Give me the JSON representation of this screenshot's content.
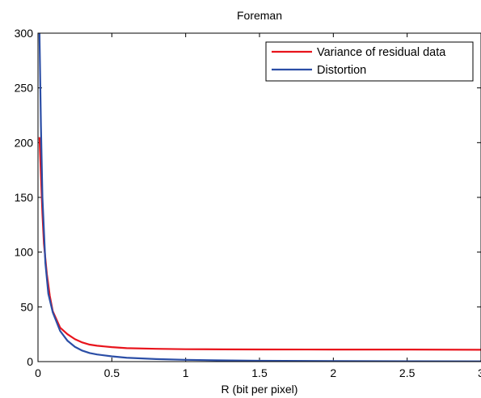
{
  "chart_data": {
    "type": "line",
    "title": "Foreman",
    "xlabel": "R (bit per pixel)",
    "ylabel": "",
    "xlim": [
      0,
      3
    ],
    "ylim": [
      0,
      300
    ],
    "xticks": [
      0,
      0.5,
      1,
      1.5,
      2,
      2.5,
      3
    ],
    "xtick_labels": [
      "0",
      "0.5",
      "1",
      "1.5",
      "2",
      "2.5",
      "3"
    ],
    "yticks": [
      0,
      50,
      100,
      150,
      200,
      250,
      300
    ],
    "ytick_labels": [
      "0",
      "50",
      "100",
      "150",
      "200",
      "250",
      "300"
    ],
    "grid": false,
    "legend_position": "top-right",
    "series": [
      {
        "name": "Variance of residual data",
        "color": "#e8141c",
        "x": [
          0.01,
          0.02,
          0.03,
          0.04,
          0.06,
          0.08,
          0.1,
          0.15,
          0.2,
          0.25,
          0.3,
          0.35,
          0.4,
          0.5,
          0.6,
          0.8,
          1.0,
          1.25,
          1.5,
          2.0,
          2.5,
          3.0
        ],
        "y": [
          205,
          170,
          135,
          108,
          80,
          60,
          46,
          31,
          25,
          20.5,
          17.5,
          15.5,
          14.5,
          13.2,
          12.3,
          11.7,
          11.3,
          11.2,
          11.1,
          11.0,
          11.0,
          10.8
        ]
      },
      {
        "name": "Distortion",
        "color": "#2b4ea6",
        "x": [
          0.01,
          0.02,
          0.03,
          0.05,
          0.07,
          0.1,
          0.15,
          0.2,
          0.25,
          0.3,
          0.35,
          0.4,
          0.5,
          0.6,
          0.8,
          1.0,
          1.25,
          1.5,
          2.0,
          2.5,
          3.0
        ],
        "y": [
          300,
          215,
          150,
          90,
          62,
          45,
          28,
          19,
          13.5,
          10,
          7.8,
          6.5,
          4.8,
          3.5,
          2.3,
          1.6,
          1.1,
          0.8,
          0.5,
          0.3,
          0.2
        ]
      }
    ]
  }
}
